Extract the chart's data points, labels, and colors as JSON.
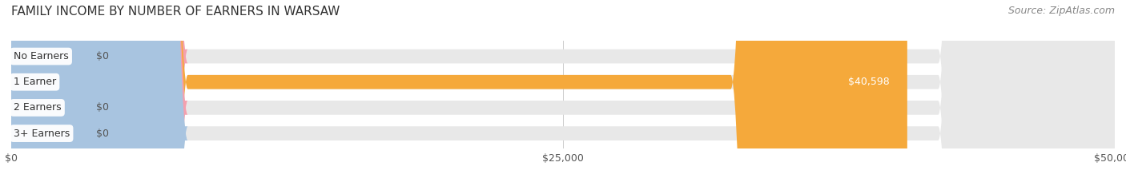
{
  "title": "FAMILY INCOME BY NUMBER OF EARNERS IN WARSAW",
  "source": "Source: ZipAtlas.com",
  "categories": [
    "No Earners",
    "1 Earner",
    "2 Earners",
    "3+ Earners"
  ],
  "values": [
    0,
    40598,
    0,
    0
  ],
  "bar_colors": [
    "#f4a0ae",
    "#f5a93b",
    "#f4a0ae",
    "#a8c4e0"
  ],
  "bg_bar_color": "#e8e8e8",
  "bar_label_color_nonzero": "#ffffff",
  "bar_label_color_zero": "#555555",
  "xlim": [
    0,
    50000
  ],
  "xticks": [
    0,
    25000,
    50000
  ],
  "xtick_labels": [
    "$0",
    "$25,000",
    "$50,000"
  ],
  "title_fontsize": 11,
  "source_fontsize": 9,
  "tick_fontsize": 9,
  "value_fontsize": 9,
  "label_fontsize": 9,
  "bar_height": 0.55,
  "figsize": [
    14.06,
    2.33
  ],
  "dpi": 100
}
